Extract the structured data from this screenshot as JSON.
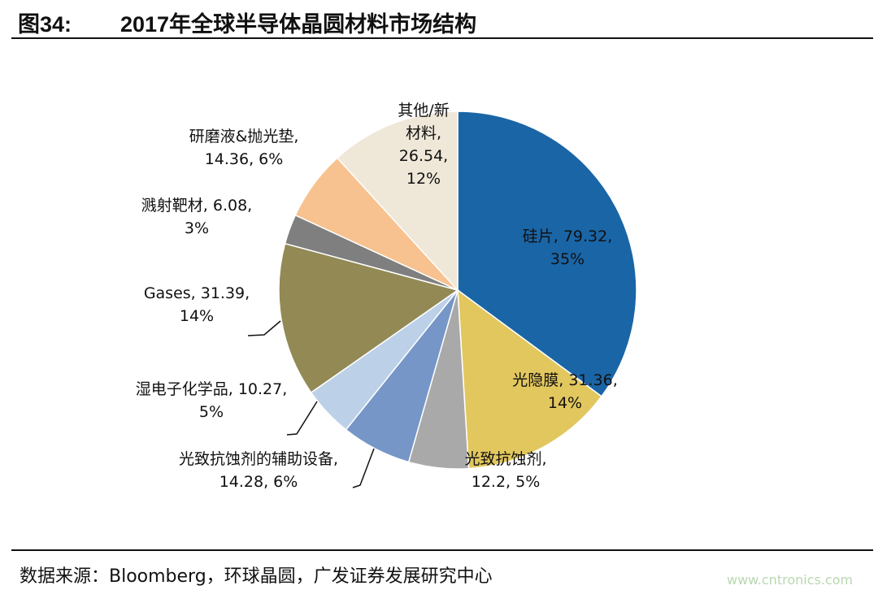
{
  "header": {
    "fig_no": "图34:",
    "title": "2017年全球半导体晶圆材料市场结构"
  },
  "footer": {
    "source": "数据来源：Bloomberg，环球晶圆，广发证券发展研究中心",
    "watermark": "www.cntronics.com"
  },
  "chart_data": {
    "type": "pie",
    "title": "2017年全球半导体晶圆材料市场结构",
    "unit": "",
    "slices": [
      {
        "name": "硅片",
        "value": 79.32,
        "percent": "35%",
        "color": "#1a65a6",
        "label_lines": [
          "硅片, 79.32,",
          "35%"
        ]
      },
      {
        "name": "光隐膜",
        "value": 31.36,
        "percent": "14%",
        "color": "#e2c75e",
        "label_lines": [
          "光隐膜, 31.36,",
          "14%"
        ]
      },
      {
        "name": "光致抗蚀剂",
        "value": 12.2,
        "percent": "5%",
        "color": "#a9a9a9",
        "label_lines": [
          "光致抗蚀剂,",
          "12.2, 5%"
        ]
      },
      {
        "name": "光致抗蚀剂的辅助设备",
        "value": 14.28,
        "percent": "6%",
        "color": "#7696c8",
        "label_lines": [
          "光致抗蚀剂的辅助设备,",
          "14.28, 6%"
        ]
      },
      {
        "name": "湿电子化学品",
        "value": 10.27,
        "percent": "5%",
        "color": "#bcd0e8",
        "label_lines": [
          "湿电子化学品, 10.27,",
          "5%"
        ]
      },
      {
        "name": "Gases",
        "value": 31.39,
        "percent": "14%",
        "color": "#928955",
        "label_lines": [
          "Gases, 31.39,",
          "14%"
        ]
      },
      {
        "name": "溅射靶材",
        "value": 6.08,
        "percent": "3%",
        "color": "#7f7f7f",
        "label_lines": [
          "溅射靶材, 6.08,",
          "3%"
        ]
      },
      {
        "name": "研磨液&抛光垫",
        "value": 14.36,
        "percent": "6%",
        "color": "#f7c28f",
        "label_lines": [
          "研磨液&抛光垫,",
          "14.36, 6%"
        ]
      },
      {
        "name": "其他/新材料",
        "value": 26.54,
        "percent": "12%",
        "color": "#efe7d8",
        "label_lines": [
          "其他/新",
          "材料,",
          "26.54,",
          "12%"
        ]
      }
    ]
  }
}
